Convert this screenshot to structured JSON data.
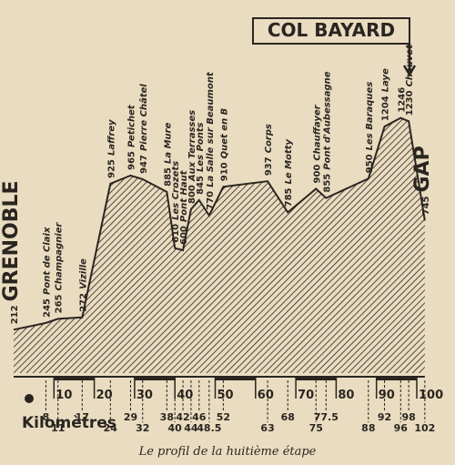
{
  "chart_data": {
    "type": "area",
    "title": "COL BAYARD",
    "caption": "Le profil de la huitième étape",
    "x_label": "Kilomètres",
    "color": "#2a2520",
    "xlim": [
      0,
      100
    ],
    "ylim": [
      0,
      1800
    ],
    "xticks": [
      10,
      20,
      30,
      40,
      50,
      60,
      70,
      80,
      90,
      100
    ],
    "x": [
      0,
      8,
      11,
      17,
      24,
      29,
      32,
      38,
      40,
      42,
      44,
      46,
      48.5,
      52,
      63,
      68,
      75,
      77.5,
      88,
      92,
      96,
      98,
      102
    ],
    "values": [
      212,
      245,
      265,
      272,
      925,
      965,
      947,
      885,
      610,
      600,
      800,
      845,
      770,
      910,
      937,
      785,
      900,
      855,
      950,
      1204,
      1246,
      1230,
      745
    ],
    "labels": [
      "GRENOBLE",
      "Pont de Claix",
      "Champagnier",
      "Vizille",
      "Laffrey",
      "Petichet",
      "Pierre Châtel",
      "La Mure",
      "Les Crozets",
      "Pont Haut",
      "Aux Terrasses",
      "Les Ponts",
      "La Salle sur Beaumont",
      "Quet en B",
      "Corps",
      "Le Motty",
      "Chauffayer",
      "Pont d'Aubessagne",
      "Les Baraques",
      "Laye",
      null,
      "Chauvet",
      "GAP"
    ]
  }
}
